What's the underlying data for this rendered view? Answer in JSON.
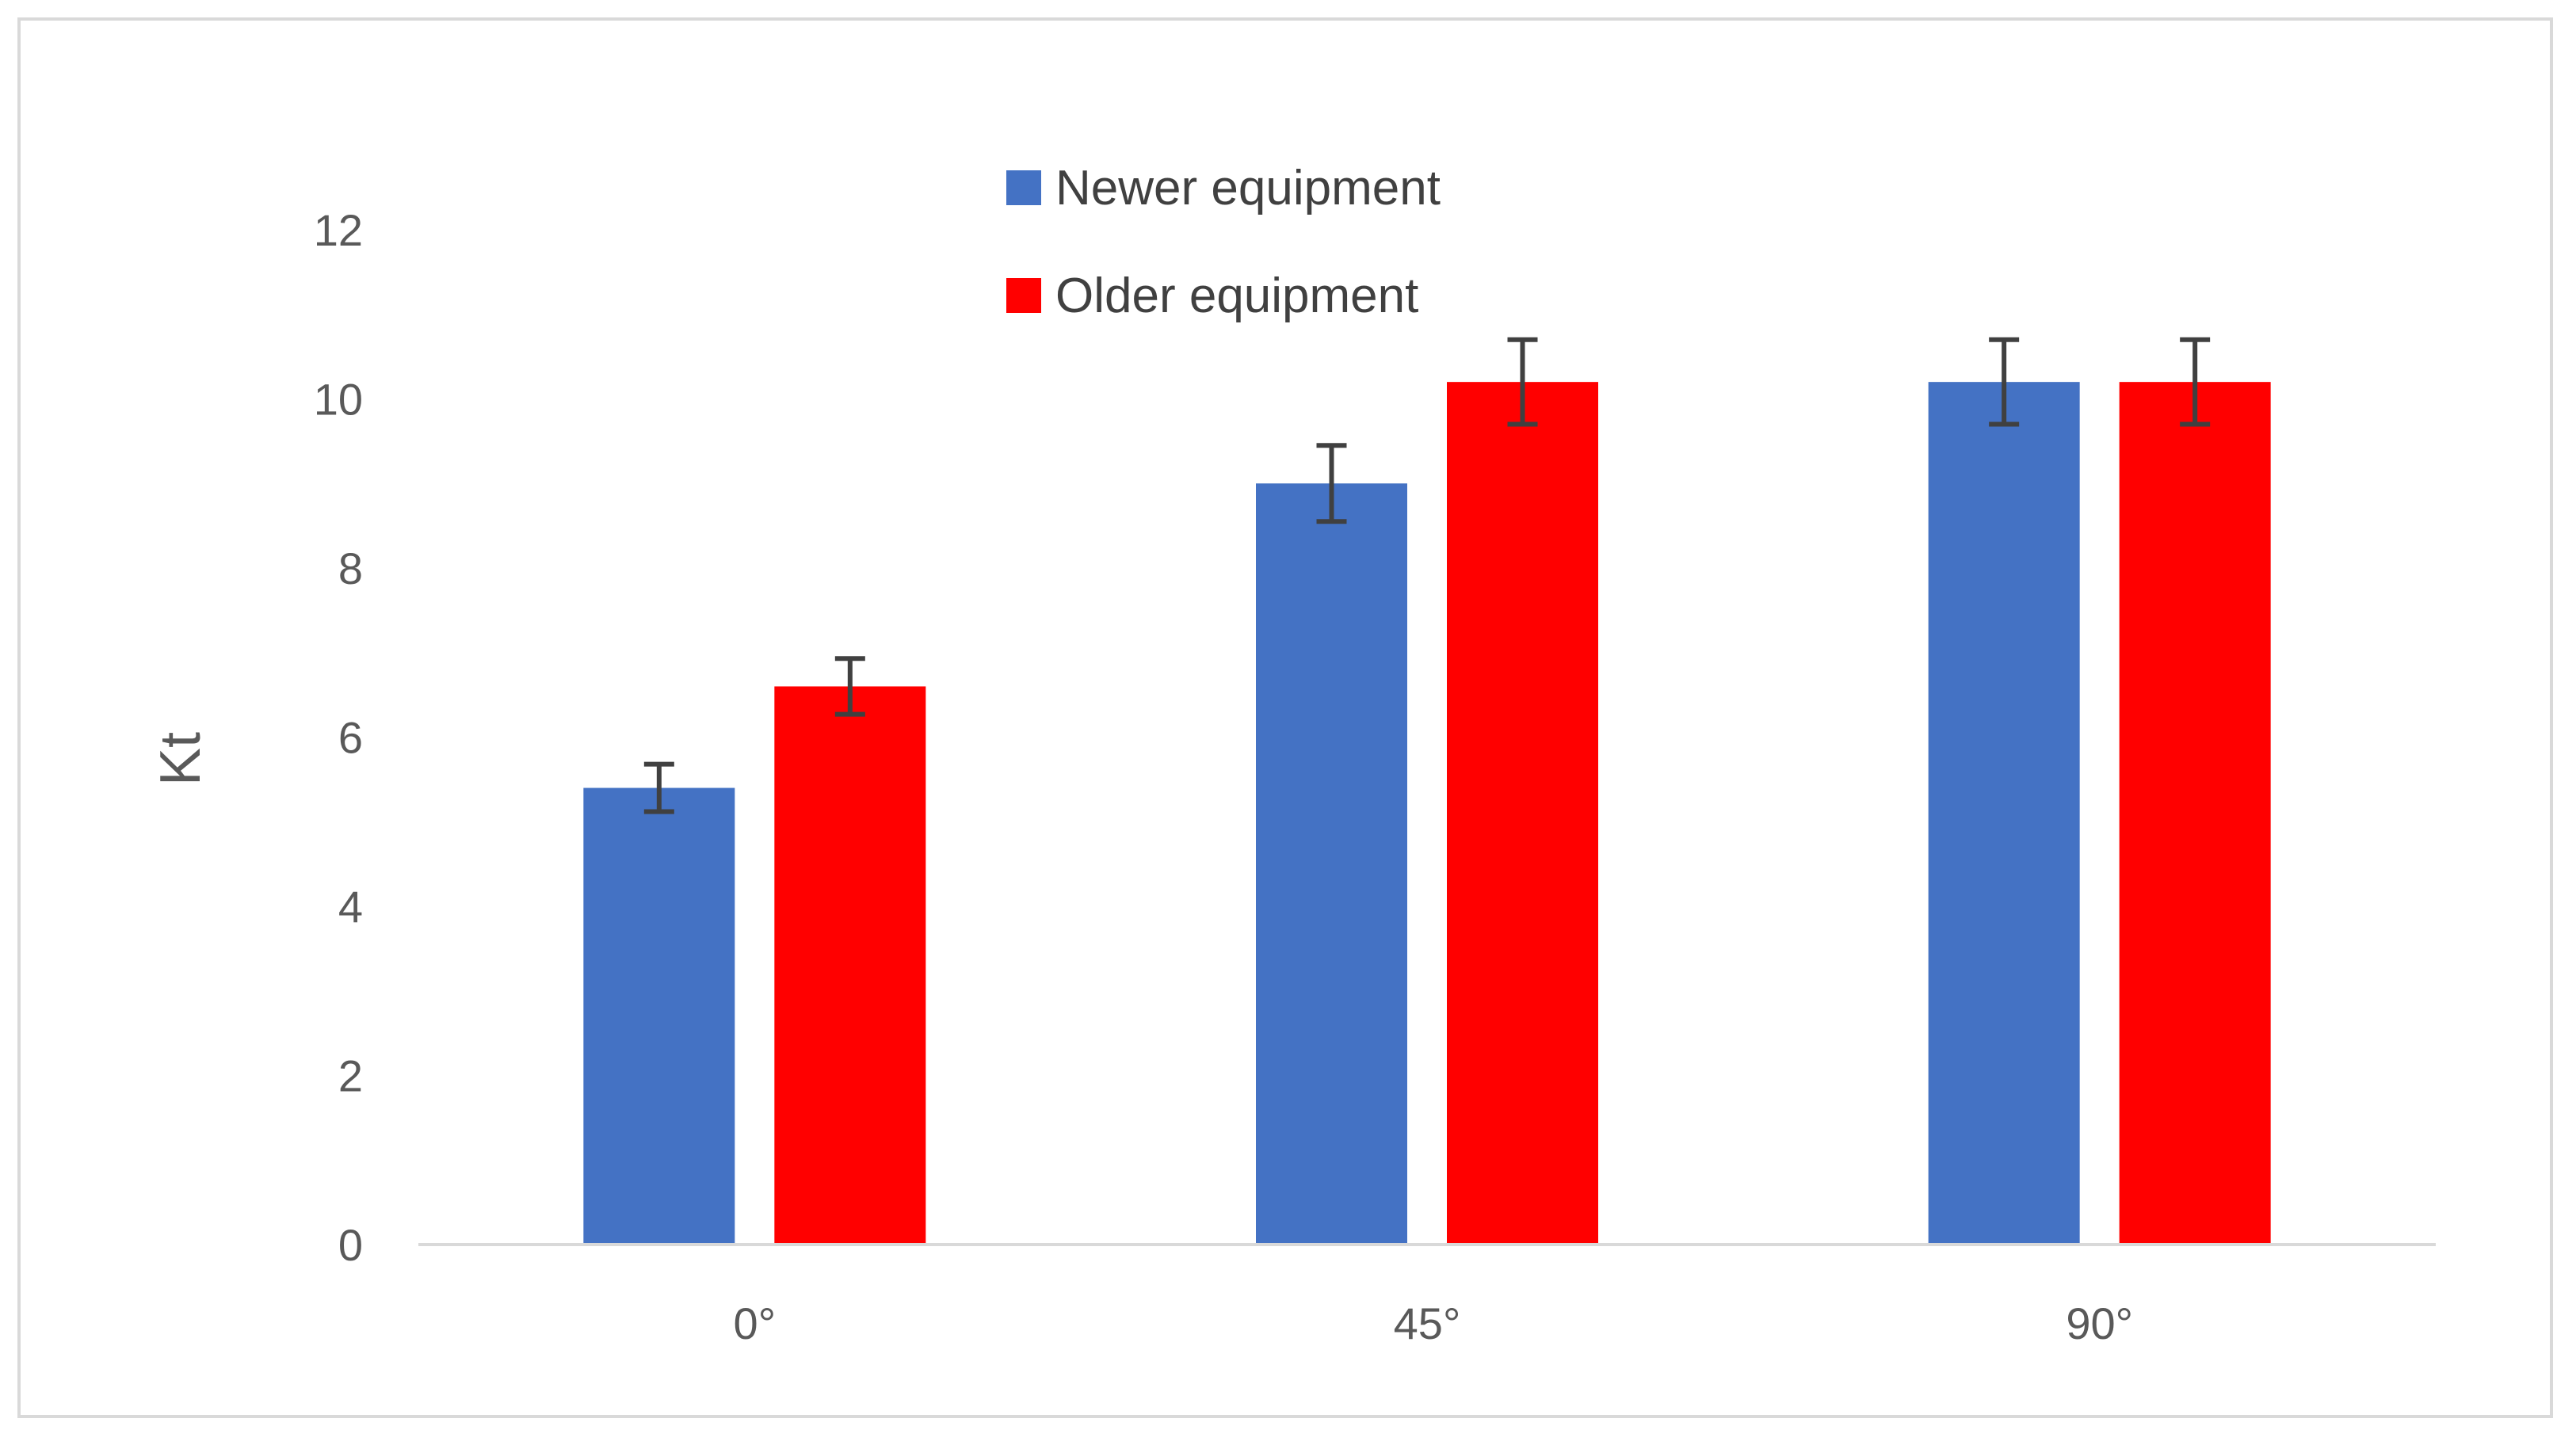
{
  "chart_data": {
    "type": "bar",
    "title": "",
    "xlabel": "",
    "ylabel": "Kt",
    "categories": [
      "0°",
      "45°",
      "90°"
    ],
    "ylim": [
      0,
      12
    ],
    "yticks": [
      0,
      2,
      4,
      6,
      8,
      10,
      12
    ],
    "grid": false,
    "legend": "top-center",
    "series": [
      {
        "name": "Newer equipment",
        "color": "#4472C4",
        "values": [
          5.4,
          9.0,
          10.2
        ],
        "errors": [
          0.28,
          0.45,
          0.5
        ]
      },
      {
        "name": "Older equipment",
        "color": "#FF0000",
        "values": [
          6.6,
          10.2,
          10.2
        ],
        "errors": [
          0.33,
          0.5,
          0.5
        ]
      }
    ],
    "error_bar_color": "#404040",
    "axis_color": "#d9d9d9"
  }
}
